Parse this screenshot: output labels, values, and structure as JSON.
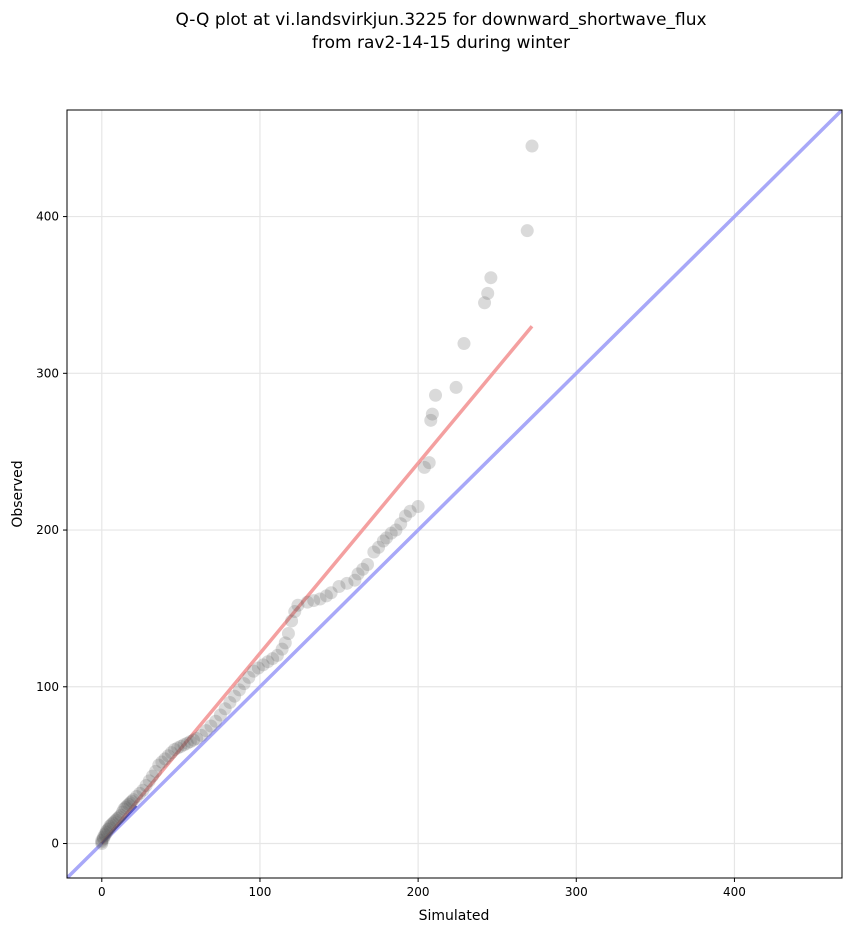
{
  "chart_data": {
    "type": "scatter",
    "title_lines": [
      "Q-Q plot at vi.landsvirkjun.3225 for downward_shortwave_flux",
      "from rav2-14-15 during winter"
    ],
    "xlabel": "Simulated",
    "ylabel": "Observed",
    "xlim": [
      -22,
      468
    ],
    "ylim": [
      -22,
      468
    ],
    "xticks": [
      0,
      100,
      200,
      300,
      400
    ],
    "yticks": [
      0,
      100,
      200,
      300,
      400
    ],
    "grid": true,
    "colors": {
      "points": "#555555",
      "fit_line": "#f4a0a0",
      "identity_line": "#a8a8f8",
      "identity_dense": "#2222aa"
    },
    "fit_line": {
      "x": [
        0,
        272
      ],
      "y": [
        0,
        330
      ]
    },
    "identity_line": {
      "x": [
        -22,
        468
      ],
      "y": [
        -22,
        468
      ]
    },
    "points": {
      "x": [
        0,
        0,
        0,
        1,
        1,
        2,
        2,
        3,
        3,
        4,
        5,
        5,
        6,
        7,
        8,
        9,
        10,
        11,
        12,
        13,
        14,
        15,
        16,
        17,
        18,
        19,
        20,
        22,
        24,
        26,
        28,
        30,
        32,
        34,
        36,
        38,
        40,
        42,
        44,
        46,
        48,
        50,
        52,
        54,
        56,
        58,
        60,
        63,
        66,
        69,
        72,
        75,
        78,
        81,
        84,
        87,
        90,
        93,
        96,
        99,
        102,
        105,
        108,
        111,
        114,
        116,
        118,
        120,
        122,
        124,
        130,
        134,
        138,
        142,
        145,
        150,
        155,
        160,
        162,
        165,
        168,
        172,
        175,
        178,
        180,
        183,
        186,
        189,
        192,
        195,
        200,
        204,
        207,
        208,
        209,
        211,
        224,
        229,
        242,
        244,
        246,
        269,
        272
      ],
      "y": [
        0,
        1,
        2,
        3,
        4,
        5,
        6,
        7,
        8,
        9,
        10,
        11,
        12,
        13,
        14,
        15,
        16,
        17,
        18,
        20,
        22,
        23,
        24,
        25,
        26,
        27,
        28,
        30,
        32,
        34,
        37,
        40,
        43,
        46,
        50,
        52,
        54,
        56,
        58,
        60,
        61,
        62,
        63,
        64,
        65,
        66,
        67,
        69,
        72,
        75,
        78,
        82,
        86,
        90,
        94,
        98,
        102,
        106,
        110,
        112,
        114,
        116,
        118,
        120,
        124,
        128,
        134,
        142,
        148,
        152,
        154,
        155,
        156,
        158,
        160,
        164,
        166,
        168,
        172,
        175,
        178,
        186,
        189,
        193,
        195,
        198,
        200,
        204,
        209,
        212,
        215,
        240,
        243,
        270,
        274,
        286,
        291,
        319,
        345,
        351,
        361,
        391,
        445
      ]
    }
  }
}
